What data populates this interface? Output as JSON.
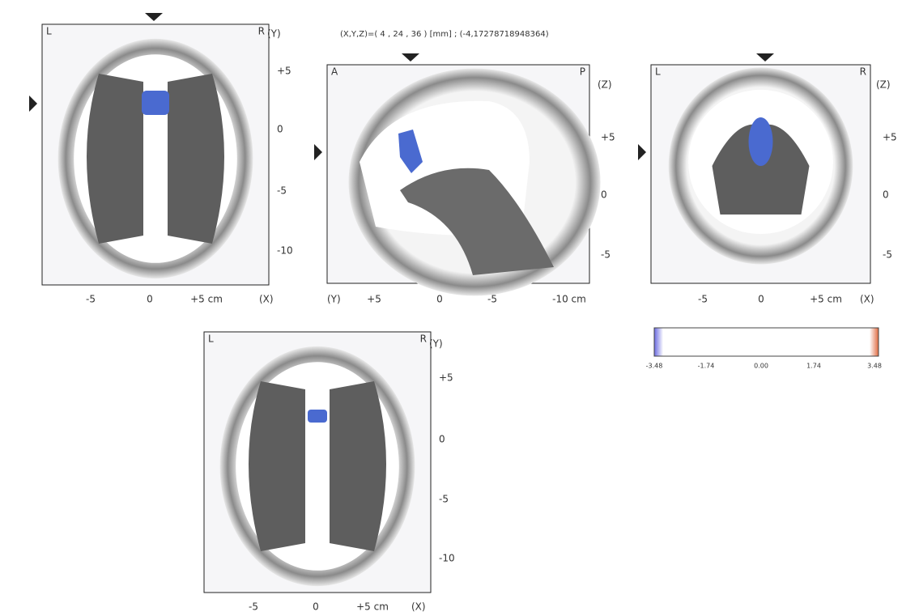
{
  "header": {
    "coordinates": "(X,Y,Z)=( 4 , 24 , 36 ) [mm] ; (-4,17278718948364)"
  },
  "panels": [
    {
      "corner_left": "L",
      "corner_right": "R",
      "y_axis_label": "(Y)",
      "y_ticks": [
        "+5",
        "0",
        "-5",
        "-10"
      ],
      "x_ticks": [
        "-5",
        "0",
        "+5 cm"
      ],
      "x_axis_label": "(X)"
    },
    {
      "corner_left": "A",
      "corner_right": "P",
      "y_axis_label": "(Z)",
      "y_ticks": [
        "+5",
        "0",
        "-5"
      ],
      "x_ticks": [
        "+5",
        "0",
        "-5",
        "-10 cm"
      ],
      "x_axis_label": "(Y)"
    },
    {
      "corner_left": "L",
      "corner_right": "R",
      "y_axis_label": "(Z)",
      "y_ticks": [
        "+5",
        "0",
        "-5"
      ],
      "x_ticks": [
        "-5",
        "0",
        "+5 cm"
      ],
      "x_axis_label": "(X)"
    },
    {
      "corner_left": "L",
      "corner_right": "R",
      "y_axis_label": "(Y)",
      "y_ticks": [
        "+5",
        "0",
        "-5",
        "-10"
      ],
      "x_ticks": [
        "-5",
        "0",
        "+5 cm"
      ],
      "x_axis_label": "(X)"
    }
  ],
  "colorbar": {
    "labels": [
      "-3.48",
      "-1.74",
      "0.00",
      "1.74",
      "3.48"
    ]
  }
}
